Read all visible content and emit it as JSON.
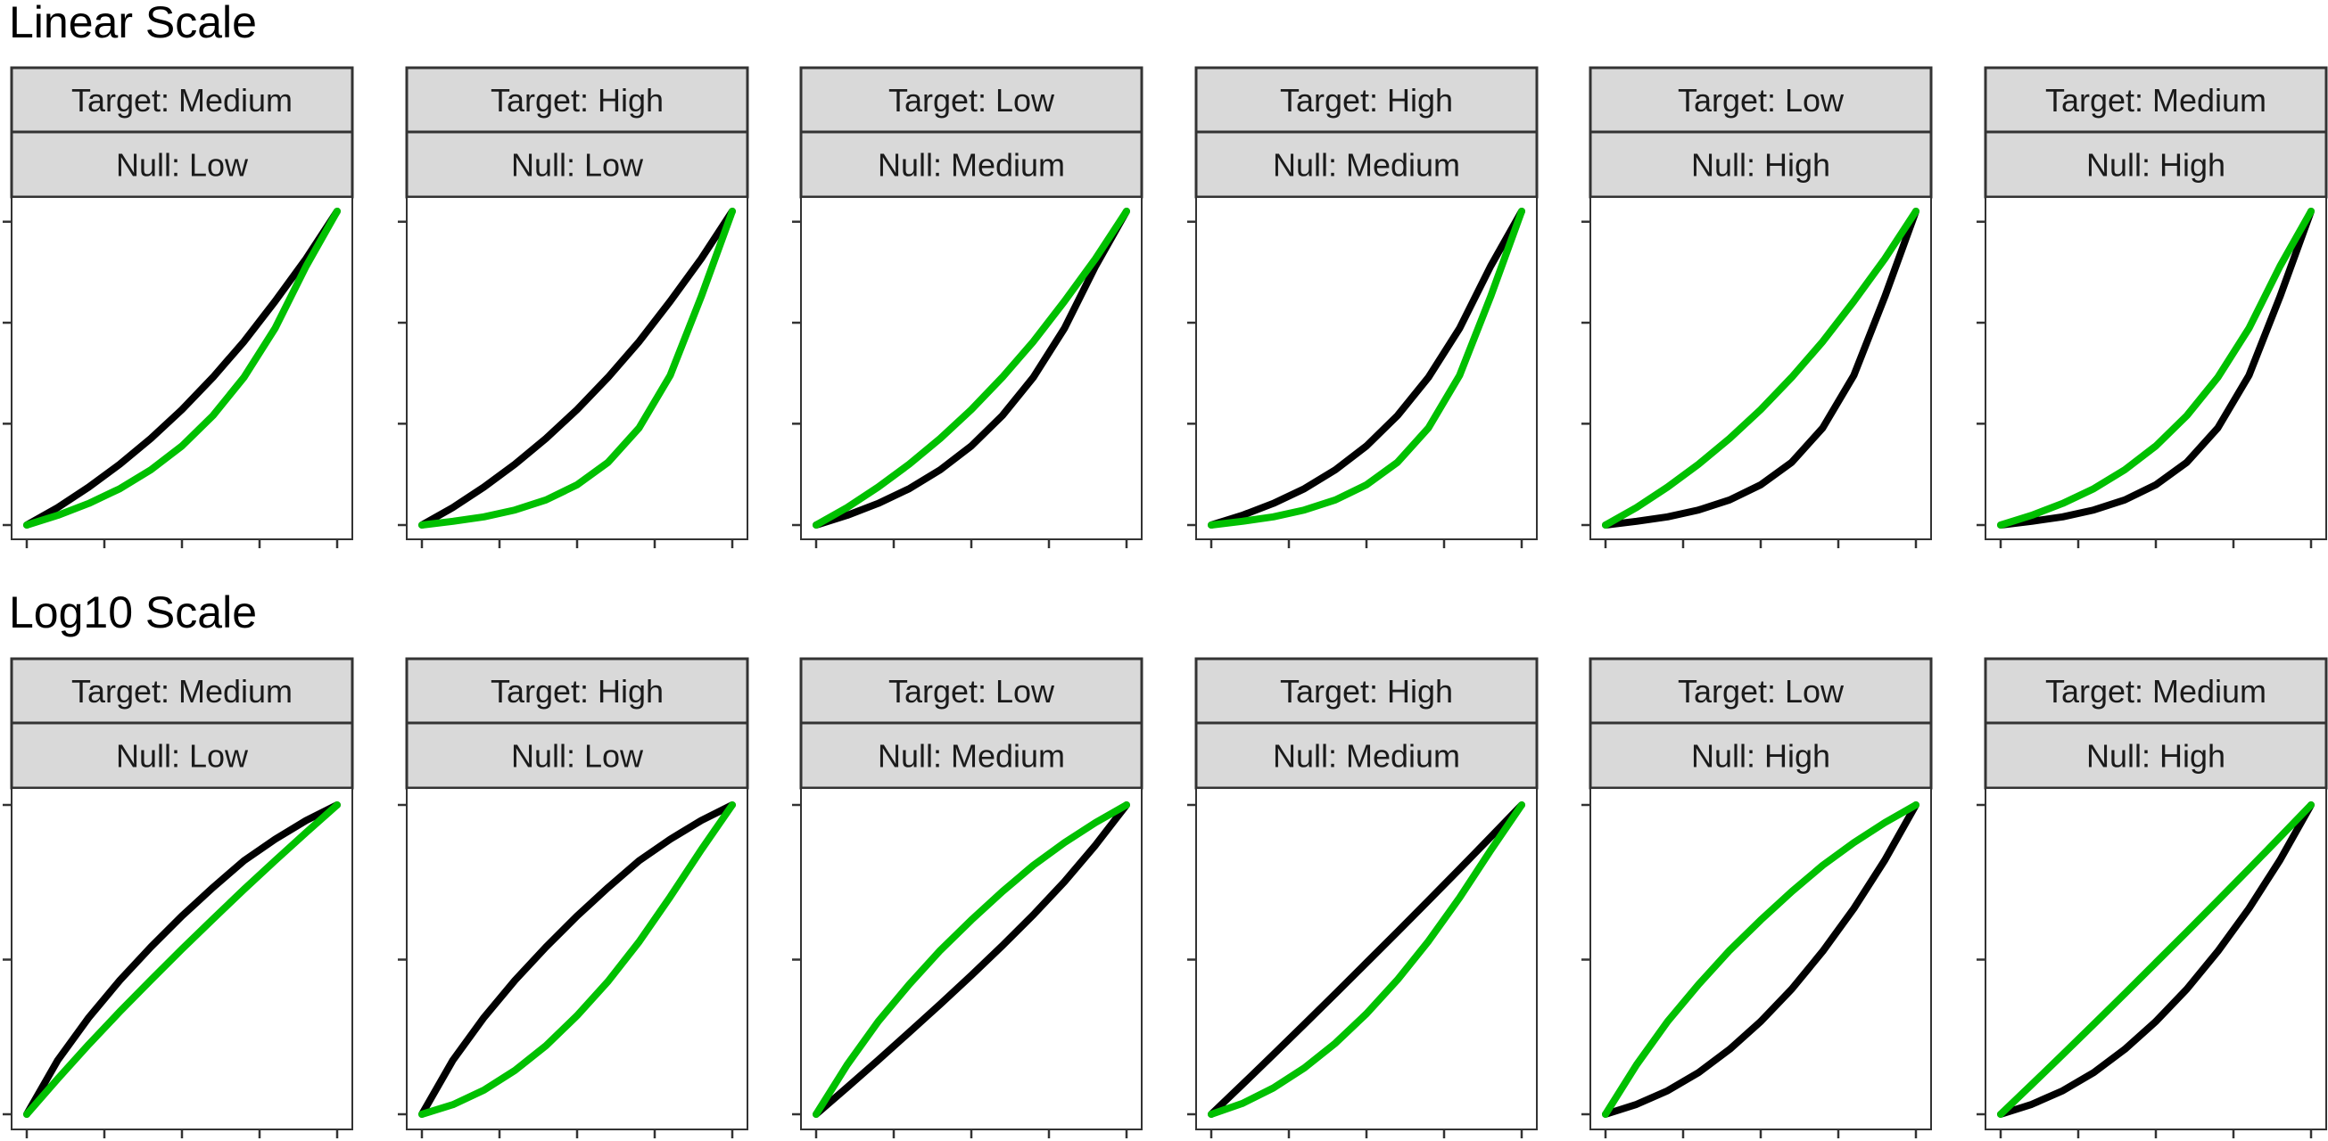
{
  "colors": {
    "null_curve": "#000000",
    "target_curve": "#00c000",
    "strip_background": "#d9d9d9",
    "panel_border": "#333333"
  },
  "chart_data": [
    {
      "type": "line",
      "title": "Linear Scale",
      "xlabel": "",
      "ylabel": "",
      "grid": false,
      "legend": "none",
      "x_ticks": 5,
      "y_ticks": 4,
      "panels": [
        {
          "target_label": "Target: Medium",
          "null_label": "Null: Low",
          "series": [
            {
              "color": "#000000",
              "x": [
                0,
                0.1,
                0.2,
                0.3,
                0.4,
                0.5,
                0.6,
                0.7,
                0.8,
                0.9,
                1.0
              ],
              "y": [
                0,
                0.056,
                0.121,
                0.194,
                0.276,
                0.368,
                0.471,
                0.585,
                0.713,
                0.849,
                1.0
              ]
            },
            {
              "color": "#00c000",
              "x": [
                0,
                0.1,
                0.2,
                0.3,
                0.4,
                0.5,
                0.6,
                0.7,
                0.8,
                0.9,
                1.0
              ],
              "y": [
                0,
                0.031,
                0.069,
                0.116,
                0.176,
                0.252,
                0.349,
                0.471,
                0.627,
                0.825,
                1.0
              ]
            }
          ]
        },
        {
          "target_label": "Target: High",
          "null_label": "Null: Low",
          "series": [
            {
              "color": "#000000",
              "x": [
                0,
                0.1,
                0.2,
                0.3,
                0.4,
                0.5,
                0.6,
                0.7,
                0.8,
                0.9,
                1.0
              ],
              "y": [
                0,
                0.056,
                0.121,
                0.194,
                0.276,
                0.368,
                0.471,
                0.585,
                0.713,
                0.849,
                1.0
              ]
            },
            {
              "color": "#00c000",
              "x": [
                0,
                0.1,
                0.2,
                0.3,
                0.4,
                0.5,
                0.6,
                0.7,
                0.8,
                0.9,
                1.0
              ],
              "y": [
                0,
                0.012,
                0.026,
                0.048,
                0.08,
                0.128,
                0.2,
                0.31,
                0.477,
                0.728,
                1.0
              ]
            }
          ]
        },
        {
          "target_label": "Target: Low",
          "null_label": "Null: Medium",
          "series": [
            {
              "color": "#000000",
              "x": [
                0,
                0.1,
                0.2,
                0.3,
                0.4,
                0.5,
                0.6,
                0.7,
                0.8,
                0.9,
                1.0
              ],
              "y": [
                0,
                0.031,
                0.069,
                0.116,
                0.176,
                0.252,
                0.349,
                0.471,
                0.627,
                0.825,
                1.0
              ]
            },
            {
              "color": "#00c000",
              "x": [
                0,
                0.1,
                0.2,
                0.3,
                0.4,
                0.5,
                0.6,
                0.7,
                0.8,
                0.9,
                1.0
              ],
              "y": [
                0,
                0.056,
                0.121,
                0.194,
                0.276,
                0.368,
                0.471,
                0.585,
                0.713,
                0.849,
                1.0
              ]
            }
          ]
        },
        {
          "target_label": "Target: High",
          "null_label": "Null: Medium",
          "series": [
            {
              "color": "#000000",
              "x": [
                0,
                0.1,
                0.2,
                0.3,
                0.4,
                0.5,
                0.6,
                0.7,
                0.8,
                0.9,
                1.0
              ],
              "y": [
                0,
                0.031,
                0.069,
                0.116,
                0.176,
                0.252,
                0.349,
                0.471,
                0.627,
                0.825,
                1.0
              ]
            },
            {
              "color": "#00c000",
              "x": [
                0,
                0.1,
                0.2,
                0.3,
                0.4,
                0.5,
                0.6,
                0.7,
                0.8,
                0.9,
                1.0
              ],
              "y": [
                0,
                0.012,
                0.026,
                0.048,
                0.08,
                0.128,
                0.2,
                0.31,
                0.477,
                0.728,
                1.0
              ]
            }
          ]
        },
        {
          "target_label": "Target: Low",
          "null_label": "Null: High",
          "series": [
            {
              "color": "#000000",
              "x": [
                0,
                0.1,
                0.2,
                0.3,
                0.4,
                0.5,
                0.6,
                0.7,
                0.8,
                0.9,
                1.0
              ],
              "y": [
                0,
                0.012,
                0.026,
                0.048,
                0.08,
                0.128,
                0.2,
                0.31,
                0.477,
                0.728,
                1.0
              ]
            },
            {
              "color": "#00c000",
              "x": [
                0,
                0.1,
                0.2,
                0.3,
                0.4,
                0.5,
                0.6,
                0.7,
                0.8,
                0.9,
                1.0
              ],
              "y": [
                0,
                0.056,
                0.121,
                0.194,
                0.276,
                0.368,
                0.471,
                0.585,
                0.713,
                0.849,
                1.0
              ]
            }
          ]
        },
        {
          "target_label": "Target: Medium",
          "null_label": "Null: High",
          "series": [
            {
              "color": "#000000",
              "x": [
                0,
                0.1,
                0.2,
                0.3,
                0.4,
                0.5,
                0.6,
                0.7,
                0.8,
                0.9,
                1.0
              ],
              "y": [
                0,
                0.012,
                0.026,
                0.048,
                0.08,
                0.128,
                0.2,
                0.31,
                0.477,
                0.728,
                1.0
              ]
            },
            {
              "color": "#00c000",
              "x": [
                0,
                0.1,
                0.2,
                0.3,
                0.4,
                0.5,
                0.6,
                0.7,
                0.8,
                0.9,
                1.0
              ],
              "y": [
                0,
                0.031,
                0.069,
                0.116,
                0.176,
                0.252,
                0.349,
                0.471,
                0.627,
                0.825,
                1.0
              ]
            }
          ]
        }
      ]
    },
    {
      "type": "line",
      "title": "Log10 Scale",
      "xlabel": "",
      "ylabel": "",
      "grid": false,
      "legend": "none",
      "x_ticks": 5,
      "y_ticks": 3,
      "panels": [
        {
          "target_label": "Target: Medium",
          "null_label": "Null: Low",
          "series": [
            {
              "color": "#000000",
              "x": [
                0,
                0.1,
                0.2,
                0.3,
                0.4,
                0.5,
                0.6,
                0.7,
                0.8,
                0.9,
                1.0
              ],
              "y": [
                0,
                0.175,
                0.313,
                0.433,
                0.541,
                0.641,
                0.733,
                0.82,
                0.889,
                0.95,
                1.0
              ]
            },
            {
              "color": "#00c000",
              "x": [
                0,
                0.1,
                0.2,
                0.3,
                0.4,
                0.5,
                0.6,
                0.7,
                0.8,
                0.9,
                1.0
              ],
              "y": [
                0,
                0.115,
                0.226,
                0.332,
                0.434,
                0.534,
                0.631,
                0.727,
                0.82,
                0.911,
                1.0
              ]
            }
          ]
        },
        {
          "target_label": "Target: High",
          "null_label": "Null: Low",
          "series": [
            {
              "color": "#000000",
              "x": [
                0,
                0.1,
                0.2,
                0.3,
                0.4,
                0.5,
                0.6,
                0.7,
                0.8,
                0.9,
                1.0
              ],
              "y": [
                0,
                0.175,
                0.313,
                0.433,
                0.541,
                0.641,
                0.733,
                0.82,
                0.889,
                0.95,
                1.0
              ]
            },
            {
              "color": "#00c000",
              "x": [
                0,
                0.1,
                0.2,
                0.3,
                0.4,
                0.5,
                0.6,
                0.7,
                0.8,
                0.9,
                1.0
              ],
              "y": [
                0,
                0.031,
                0.078,
                0.142,
                0.222,
                0.319,
                0.43,
                0.558,
                0.703,
                0.855,
                1.0
              ]
            }
          ]
        },
        {
          "target_label": "Target: Low",
          "null_label": "Null: Medium",
          "series": [
            {
              "color": "#000000",
              "x": [
                0,
                0.1,
                0.2,
                0.3,
                0.4,
                0.5,
                0.6,
                0.7,
                0.8,
                0.9,
                1.0
              ],
              "y": [
                0,
                0.087,
                0.175,
                0.265,
                0.356,
                0.449,
                0.545,
                0.645,
                0.752,
                0.87,
                1.0
              ]
            },
            {
              "color": "#00c000",
              "x": [
                0,
                0.1,
                0.2,
                0.3,
                0.4,
                0.5,
                0.6,
                0.7,
                0.8,
                0.9,
                1.0
              ],
              "y": [
                0,
                0.16,
                0.3,
                0.42,
                0.53,
                0.628,
                0.72,
                0.805,
                0.878,
                0.943,
                1.0
              ]
            }
          ]
        },
        {
          "target_label": "Target: High",
          "null_label": "Null: Medium",
          "series": [
            {
              "color": "#000000",
              "x": [
                0,
                0.1,
                0.2,
                0.3,
                0.4,
                0.5,
                0.6,
                0.7,
                0.8,
                0.9,
                1.0
              ],
              "y": [
                0,
                0.096,
                0.193,
                0.291,
                0.39,
                0.49,
                0.59,
                0.691,
                0.793,
                0.896,
                1.0
              ]
            },
            {
              "color": "#00c000",
              "x": [
                0,
                0.1,
                0.2,
                0.3,
                0.4,
                0.5,
                0.6,
                0.7,
                0.8,
                0.9,
                1.0
              ],
              "y": [
                0,
                0.035,
                0.085,
                0.15,
                0.23,
                0.325,
                0.435,
                0.56,
                0.7,
                0.853,
                1.0
              ]
            }
          ]
        },
        {
          "target_label": "Target: Low",
          "null_label": "Null: High",
          "series": [
            {
              "color": "#000000",
              "x": [
                0,
                0.1,
                0.2,
                0.3,
                0.4,
                0.5,
                0.6,
                0.7,
                0.8,
                0.9,
                1.0
              ],
              "y": [
                0,
                0.032,
                0.076,
                0.135,
                0.21,
                0.3,
                0.405,
                0.527,
                0.665,
                0.822,
                1.0
              ]
            },
            {
              "color": "#00c000",
              "x": [
                0,
                0.1,
                0.2,
                0.3,
                0.4,
                0.5,
                0.6,
                0.7,
                0.8,
                0.9,
                1.0
              ],
              "y": [
                0,
                0.16,
                0.3,
                0.42,
                0.53,
                0.628,
                0.72,
                0.805,
                0.878,
                0.943,
                1.0
              ]
            }
          ]
        },
        {
          "target_label": "Target: Medium",
          "null_label": "Null: High",
          "series": [
            {
              "color": "#000000",
              "x": [
                0,
                0.1,
                0.2,
                0.3,
                0.4,
                0.5,
                0.6,
                0.7,
                0.8,
                0.9,
                1.0
              ],
              "y": [
                0,
                0.032,
                0.076,
                0.135,
                0.21,
                0.3,
                0.405,
                0.527,
                0.665,
                0.822,
                1.0
              ]
            },
            {
              "color": "#00c000",
              "x": [
                0,
                0.1,
                0.2,
                0.3,
                0.4,
                0.5,
                0.6,
                0.7,
                0.8,
                0.9,
                1.0
              ],
              "y": [
                0,
                0.096,
                0.193,
                0.291,
                0.39,
                0.49,
                0.59,
                0.691,
                0.793,
                0.896,
                1.0
              ]
            }
          ]
        }
      ]
    }
  ]
}
